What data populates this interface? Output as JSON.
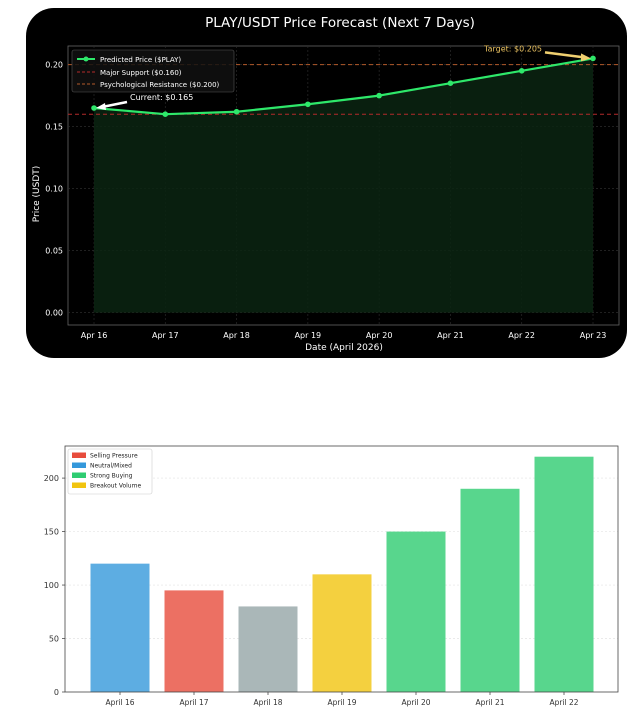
{
  "chart_data": [
    {
      "type": "line",
      "title": "PLAY/USDT Price Forecast (Next 7 Days)",
      "xlabel": "Date (April 2026)",
      "ylabel": "Price (USDT)",
      "categories": [
        "Apr 16",
        "Apr 17",
        "Apr 18",
        "Apr 19",
        "Apr 20",
        "Apr 21",
        "Apr 22",
        "Apr 23"
      ],
      "series": [
        {
          "name": "Predicted Price ($PLAY)",
          "values": [
            0.165,
            0.16,
            0.162,
            0.168,
            0.175,
            0.185,
            0.195,
            0.205
          ]
        }
      ],
      "reference_lines": [
        {
          "name": "Major Support ($0.160)",
          "value": 0.16
        },
        {
          "name": "Psychological Resistance ($0.200)",
          "value": 0.2
        }
      ],
      "ylim": [
        -0.01,
        0.215
      ],
      "yticks": [
        "0.00",
        "0.05",
        "0.10",
        "0.15",
        "0.20"
      ],
      "ytick_values": [
        0.0,
        0.05,
        0.1,
        0.15,
        0.2
      ],
      "annotations": [
        {
          "text": "Current: $0.165",
          "index": 0,
          "value": 0.165
        },
        {
          "text": "Target: $0.205",
          "index": 7,
          "value": 0.205
        }
      ],
      "colors": {
        "line": "#2ee86a",
        "support": "#b32a2a",
        "resistance": "#b35a2a",
        "fill": "#0a2412",
        "target_text": "#e8c060",
        "target_arrow": "#f0d070"
      }
    },
    {
      "type": "bar",
      "categories": [
        "April 16",
        "April 17",
        "April 18",
        "April 19",
        "April 20",
        "April 21",
        "April 22"
      ],
      "values": [
        120,
        95,
        80,
        110,
        150,
        190,
        220
      ],
      "bar_colors": [
        "#5dade2",
        "#ec7063",
        "#aab7b8",
        "#f4d03f",
        "#58d68d",
        "#58d68d",
        "#58d68d"
      ],
      "ylim": [
        0,
        230
      ],
      "yticks": [
        "0",
        "50",
        "100",
        "150",
        "200"
      ],
      "ytick_values": [
        0,
        50,
        100,
        150,
        200
      ],
      "legend": [
        {
          "label": "Selling Pressure",
          "color": "#e74c3c"
        },
        {
          "label": "Neutral/Mixed",
          "color": "#3498db"
        },
        {
          "label": "Strong Buying",
          "color": "#2ecc71"
        },
        {
          "label": "Breakout Volume",
          "color": "#f1c40f"
        }
      ]
    }
  ]
}
